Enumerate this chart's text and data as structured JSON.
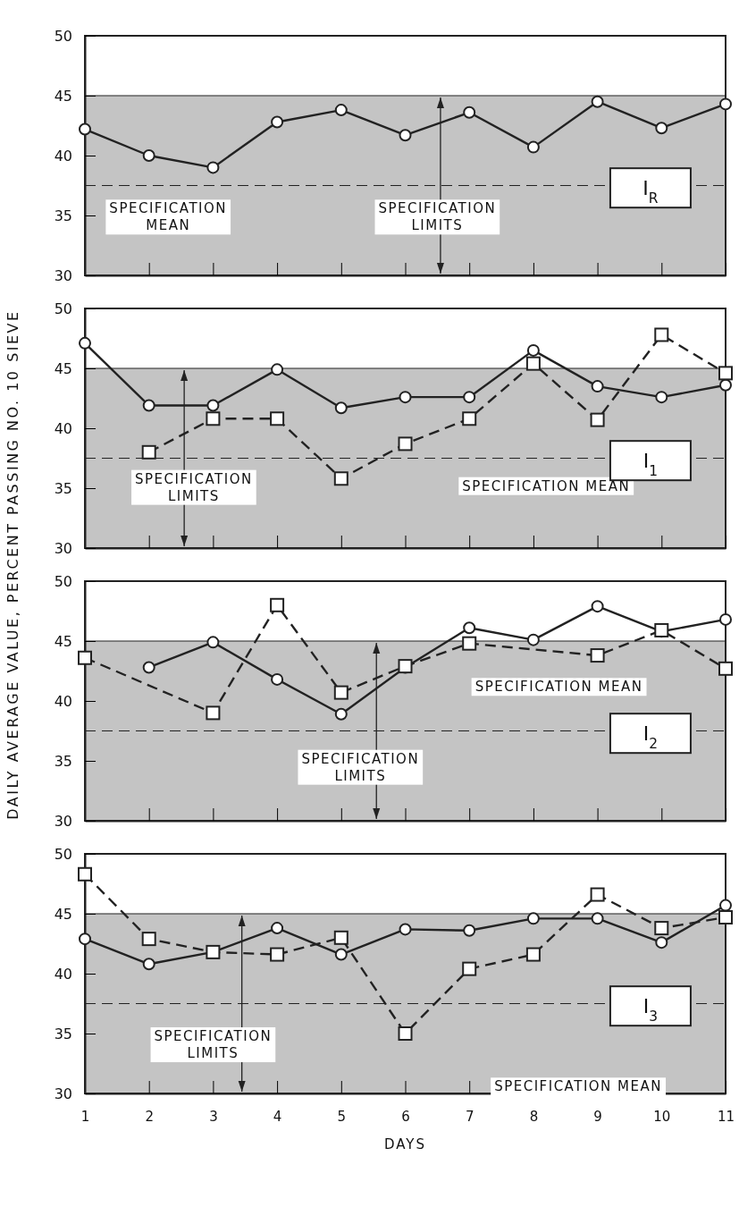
{
  "chart_data": [
    {
      "type": "line",
      "ylabel": "DAILY AVERAGE VALUE, PERCENT PASSING NO. 10 SIEVE",
      "x": [
        1,
        2,
        3,
        4,
        5,
        6,
        7,
        8,
        9,
        10,
        11
      ],
      "xlim": [
        1,
        11
      ],
      "xticks": [
        1,
        2,
        3,
        4,
        5,
        6,
        7,
        8,
        9,
        10,
        11
      ],
      "ylim": [
        30,
        50
      ],
      "yticks": [
        30,
        35,
        40,
        45,
        50
      ],
      "tick_labels": "y",
      "series": [
        {
          "color": "#222222",
          "marker": "circle",
          "line_style": "solid",
          "values": [
            42.2,
            40,
            39,
            42.8,
            43.8,
            41.7,
            43.6,
            40.7,
            44.5,
            42.3,
            44.3
          ]
        }
      ],
      "ref_lines": [
        {
          "axis": "y",
          "value": 37.5,
          "label": "SPECIFICATION MEAN",
          "line_style": "dashed"
        }
      ],
      "bands": [
        {
          "axis": "y",
          "from": 30,
          "to": 45,
          "label": "SPECIFICATION LIMITS",
          "color": "#c4c4c4"
        }
      ],
      "annotations": [
        "I$_{R}$"
      ]
    },
    {
      "type": "line",
      "x": [
        1,
        2,
        3,
        4,
        5,
        6,
        7,
        8,
        9,
        10,
        11
      ],
      "xlim": [
        1,
        11
      ],
      "xticks": [
        1,
        2,
        3,
        4,
        5,
        6,
        7,
        8,
        9,
        10,
        11
      ],
      "ylim": [
        30,
        50
      ],
      "yticks": [
        30,
        35,
        40,
        45,
        50
      ],
      "tick_labels": "y",
      "series": [
        {
          "color": "#222222",
          "marker": "circle",
          "line_style": "solid",
          "values": [
            47.1,
            41.9,
            41.9,
            44.9,
            41.7,
            42.6,
            42.6,
            46.5,
            43.5,
            42.6,
            43.6
          ]
        },
        {
          "color": "#222222",
          "marker": "square",
          "line_style": "dashed",
          "values": [
            null,
            38,
            40.8,
            40.8,
            35.8,
            38.7,
            40.8,
            45.4,
            40.7,
            47.8,
            44.6
          ]
        }
      ],
      "ref_lines": [
        {
          "axis": "y",
          "value": 37.5,
          "label": "SPECIFICATION MEAN",
          "line_style": "dashed"
        }
      ],
      "bands": [
        {
          "axis": "y",
          "from": 30,
          "to": 45,
          "label": "SPECIFICATION LIMITS",
          "color": "#c4c4c4"
        }
      ],
      "annotations": [
        "I$_{1}$"
      ]
    },
    {
      "type": "line",
      "x": [
        1,
        2,
        3,
        4,
        5,
        6,
        7,
        8,
        9,
        10,
        11
      ],
      "xlim": [
        1,
        11
      ],
      "xticks": [
        1,
        2,
        3,
        4,
        5,
        6,
        7,
        8,
        9,
        10,
        11
      ],
      "ylim": [
        30,
        50
      ],
      "yticks": [
        30,
        35,
        40,
        45,
        50
      ],
      "tick_labels": "y",
      "series": [
        {
          "color": "#222222",
          "marker": "circle",
          "line_style": "solid",
          "values": [
            null,
            42.8,
            44.9,
            41.8,
            38.9,
            42.8,
            46.1,
            45.1,
            47.9,
            45.8,
            46.8
          ]
        },
        {
          "color": "#222222",
          "marker": "square",
          "line_style": "dashed",
          "values": [
            43.6,
            null,
            39,
            48,
            40.7,
            42.9,
            44.8,
            null,
            43.8,
            45.9,
            42.7
          ]
        }
      ],
      "ref_lines": [
        {
          "axis": "y",
          "value": 37.5,
          "label": "SPECIFICATION MEAN",
          "line_style": "dashed"
        }
      ],
      "bands": [
        {
          "axis": "y",
          "from": 30,
          "to": 45,
          "label": "SPECIFICATION LIMITS",
          "color": "#c4c4c4"
        }
      ],
      "annotations": [
        "I$_{2}$"
      ]
    },
    {
      "type": "line",
      "xlabel": "DAYS",
      "x": [
        1,
        2,
        3,
        4,
        5,
        6,
        7,
        8,
        9,
        10,
        11
      ],
      "xlim": [
        1,
        11
      ],
      "xticks": [
        1,
        2,
        3,
        4,
        5,
        6,
        7,
        8,
        9,
        10,
        11
      ],
      "ylim": [
        30,
        50
      ],
      "yticks": [
        30,
        35,
        40,
        45,
        50
      ],
      "series": [
        {
          "color": "#222222",
          "marker": "circle",
          "line_style": "solid",
          "values": [
            42.9,
            40.8,
            41.8,
            43.8,
            41.6,
            43.7,
            43.6,
            44.6,
            44.6,
            42.6,
            45.7
          ]
        },
        {
          "color": "#222222",
          "marker": "square",
          "line_style": "dashed",
          "values": [
            48.3,
            42.9,
            41.8,
            41.6,
            43,
            35,
            40.4,
            41.6,
            46.6,
            43.8,
            44.7
          ]
        }
      ],
      "ref_lines": [
        {
          "axis": "y",
          "value": 37.5,
          "label": "SPECIFICATION MEAN",
          "line_style": "dashed"
        }
      ],
      "bands": [
        {
          "axis": "y",
          "from": 30,
          "to": 45,
          "label": "SPECIFICATION LIMITS",
          "color": "#c4c4c4"
        }
      ],
      "annotations": [
        "I$_{3}$"
      ]
    }
  ]
}
